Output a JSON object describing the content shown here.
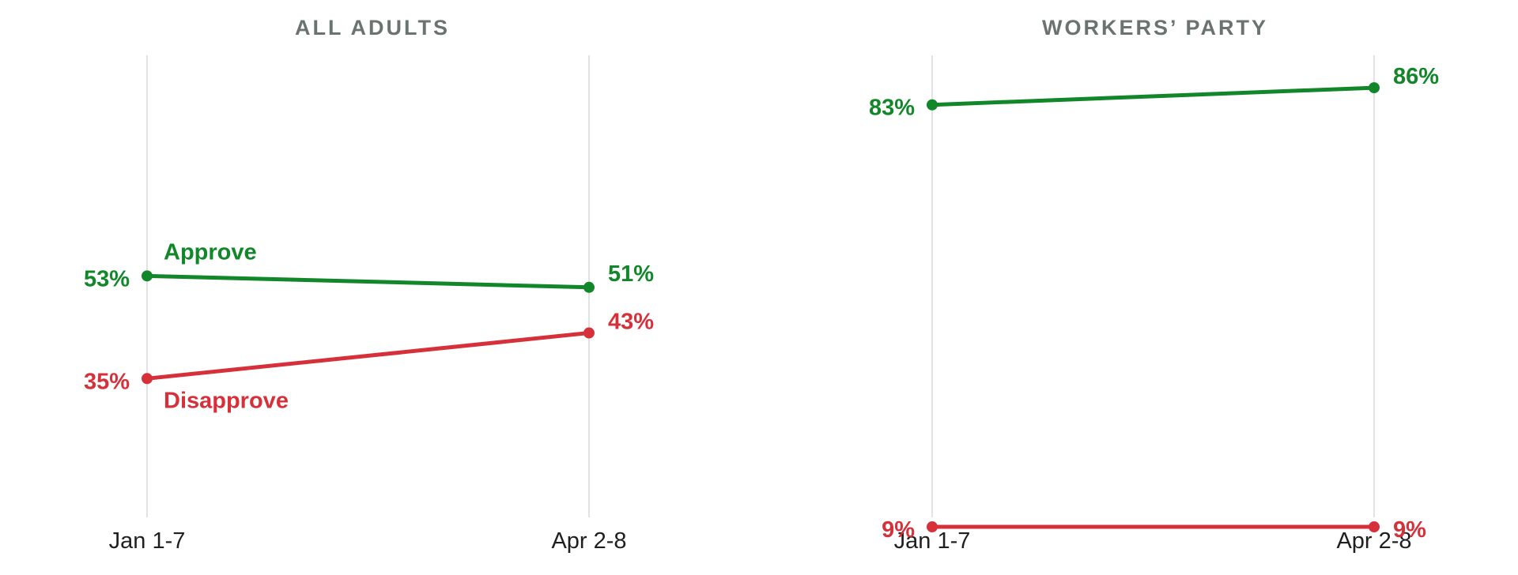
{
  "colors": {
    "approve": "#12872a",
    "disapprove": "#d6313a",
    "gridline": "#d9d9d9",
    "title": "#6b7370",
    "tick": "#1f1f1f"
  },
  "chart_data": [
    {
      "type": "line",
      "title": "ALL ADULTS",
      "categories": [
        "Jan 1-7",
        "Apr 2-8"
      ],
      "ylim": [
        0,
        100
      ],
      "grid": "vertical",
      "series": [
        {
          "name": "Approve",
          "color": "#12872a",
          "values": [
            53,
            51
          ],
          "value_labels": [
            "53%",
            "51%"
          ],
          "series_label": "Approve",
          "series_label_position": "above-start"
        },
        {
          "name": "Disapprove",
          "color": "#d6313a",
          "values": [
            35,
            43
          ],
          "value_labels": [
            "35%",
            "43%"
          ],
          "series_label": "Disapprove",
          "series_label_position": "below-start"
        }
      ]
    },
    {
      "type": "line",
      "title": "WORKERS’ PARTY",
      "categories": [
        "Jan 1-7",
        "Apr 2-8"
      ],
      "ylim": [
        0,
        100
      ],
      "grid": "vertical",
      "series": [
        {
          "name": "Approve",
          "color": "#12872a",
          "values": [
            83,
            86
          ],
          "value_labels": [
            "83%",
            "86%"
          ]
        },
        {
          "name": "Disapprove",
          "color": "#d6313a",
          "values": [
            9,
            9
          ],
          "value_labels": [
            "9%",
            "9%"
          ]
        }
      ]
    }
  ]
}
